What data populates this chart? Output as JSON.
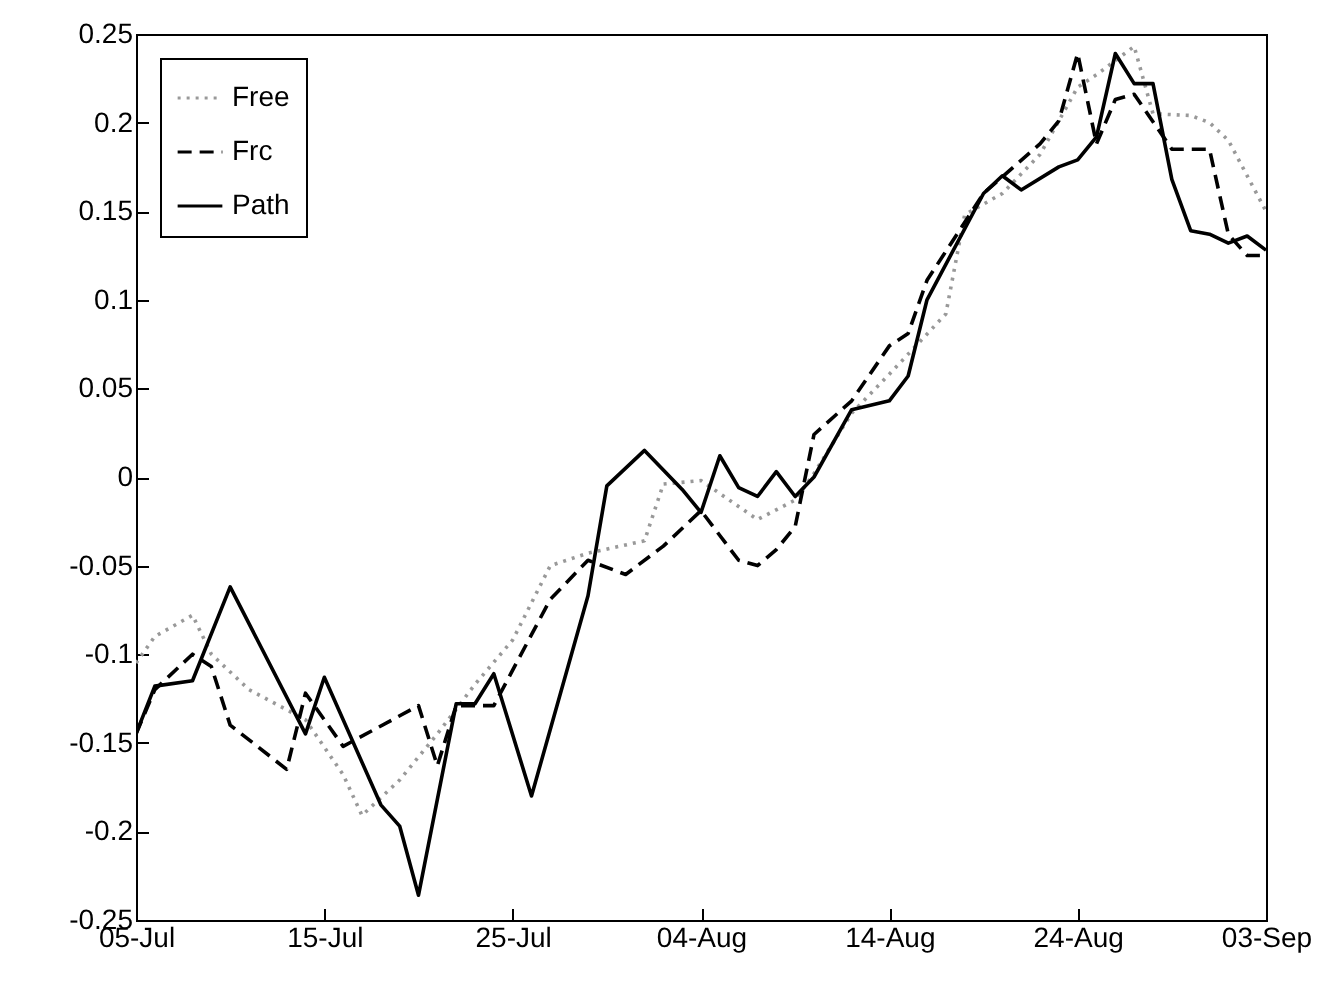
{
  "chart_data": {
    "type": "line",
    "xlim": [
      "--07-05",
      "--09-03"
    ],
    "xticks": [
      {
        "value": "--07-05",
        "label": "05-Jul"
      },
      {
        "value": "--07-15",
        "label": "15-Jul"
      },
      {
        "value": "--07-25",
        "label": "25-Jul"
      },
      {
        "value": "--08-04",
        "label": "04-Aug"
      },
      {
        "value": "--08-14",
        "label": "14-Aug"
      },
      {
        "value": "--08-24",
        "label": "24-Aug"
      },
      {
        "value": "--09-03",
        "label": "03-Sep"
      }
    ],
    "ylim": [
      -0.25,
      0.25
    ],
    "yticks": [
      -0.25,
      -0.2,
      -0.15,
      -0.1,
      -0.05,
      0,
      0.05,
      0.1,
      0.15,
      0.2,
      0.25
    ],
    "legend": "top left",
    "grid": false,
    "series": [
      {
        "name": "Free",
        "color": "#999999",
        "line_style": "dotted",
        "x": [
          "--07-05",
          "--07-06",
          "--07-08",
          "--07-09",
          "--07-11",
          "--07-14",
          "--07-16",
          "--07-17",
          "--07-19",
          "--07-21",
          "--07-23",
          "--07-25",
          "--07-27",
          "--07-29",
          "--08-01",
          "--08-02",
          "--08-04",
          "--08-07",
          "--08-09",
          "--08-10",
          "--08-12",
          "--08-14",
          "--08-17",
          "--08-18",
          "--08-20",
          "--08-22",
          "--08-24",
          "--08-25",
          "--08-27",
          "--08-28",
          "--08-30",
          "--08-31",
          "--09-01",
          "--09-03"
        ],
        "values": [
          -0.105,
          -0.09,
          -0.078,
          -0.1,
          -0.12,
          -0.137,
          -0.168,
          -0.191,
          -0.171,
          -0.145,
          -0.117,
          -0.092,
          -0.05,
          -0.043,
          -0.036,
          -0.004,
          -0.002,
          -0.024,
          -0.013,
          0.002,
          0.036,
          0.058,
          0.092,
          0.148,
          0.16,
          0.182,
          0.22,
          0.227,
          0.243,
          0.205,
          0.204,
          0.2,
          0.19,
          0.15
        ]
      },
      {
        "name": "Frc",
        "color": "#000000",
        "line_style": "dashed",
        "x": [
          "--07-05",
          "--07-06",
          "--07-08",
          "--07-09",
          "--07-10",
          "--07-13",
          "--07-14",
          "--07-16",
          "--07-20",
          "--07-21",
          "--07-22",
          "--07-24",
          "--07-27",
          "--07-29",
          "--07-31",
          "--08-02",
          "--08-04",
          "--08-05",
          "--08-06",
          "--08-07",
          "--08-08",
          "--08-09",
          "--08-10",
          "--08-12",
          "--08-14",
          "--08-15",
          "--08-16",
          "--08-19",
          "--08-22",
          "--08-23",
          "--08-24",
          "--08-25",
          "--08-26",
          "--08-27",
          "--08-29",
          "--08-31",
          "--09-01",
          "--09-02",
          "--09-03"
        ],
        "values": [
          -0.145,
          -0.12,
          -0.1,
          -0.107,
          -0.14,
          -0.165,
          -0.122,
          -0.152,
          -0.129,
          -0.163,
          -0.129,
          -0.129,
          -0.069,
          -0.047,
          -0.055,
          -0.039,
          -0.019,
          -0.033,
          -0.047,
          -0.05,
          -0.041,
          -0.028,
          0.024,
          0.043,
          0.074,
          0.081,
          0.111,
          0.16,
          0.188,
          0.201,
          0.239,
          0.188,
          0.213,
          0.216,
          0.185,
          0.185,
          0.137,
          0.125,
          0.125
        ]
      },
      {
        "name": "Path",
        "color": "#000000",
        "line_style": "solid",
        "x": [
          "--07-05",
          "--07-06",
          "--07-08",
          "--07-10",
          "--07-14",
          "--07-15",
          "--07-18",
          "--07-19",
          "--07-20",
          "--07-22",
          "--07-23",
          "--07-24",
          "--07-26",
          "--07-29",
          "--07-30",
          "--08-01",
          "--08-03",
          "--08-04",
          "--08-05",
          "--08-06",
          "--08-07",
          "--08-08",
          "--08-09",
          "--08-10",
          "--08-12",
          "--08-14",
          "--08-15",
          "--08-16",
          "--08-17",
          "--08-19",
          "--08-20",
          "--08-21",
          "--08-23",
          "--08-24",
          "--08-25",
          "--08-26",
          "--08-27",
          "--08-28",
          "--08-29",
          "--08-30",
          "--08-31",
          "--09-01",
          "--09-02",
          "--09-03"
        ],
        "values": [
          -0.145,
          -0.118,
          -0.115,
          -0.062,
          -0.145,
          -0.113,
          -0.185,
          -0.197,
          -0.236,
          -0.128,
          -0.128,
          -0.111,
          -0.18,
          -0.067,
          -0.005,
          0.015,
          -0.007,
          -0.02,
          0.012,
          -0.006,
          -0.011,
          0.003,
          -0.011,
          0,
          0.038,
          0.043,
          0.057,
          0.1,
          0.12,
          0.16,
          0.17,
          0.162,
          0.175,
          0.179,
          0.192,
          0.239,
          0.222,
          0.222,
          0.168,
          0.139,
          0.137,
          0.132,
          0.136,
          0.128
        ]
      }
    ]
  }
}
